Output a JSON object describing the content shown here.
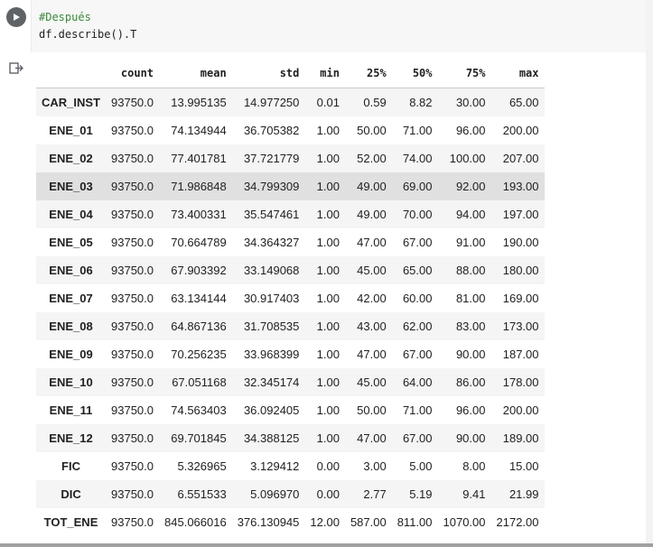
{
  "code_cell": {
    "lines": [
      "#Después",
      "df.describe().T"
    ]
  },
  "icons": {
    "run": "play-icon",
    "output": "output-arrow-icon"
  },
  "table": {
    "columns": [
      "count",
      "mean",
      "std",
      "min",
      "25%",
      "50%",
      "75%",
      "max"
    ],
    "rows": [
      {
        "index": "CAR_INST",
        "values": [
          "93750.0",
          "13.995135",
          "14.977250",
          "0.01",
          "0.59",
          "8.82",
          "30.00",
          "65.00"
        ]
      },
      {
        "index": "ENE_01",
        "values": [
          "93750.0",
          "74.134944",
          "36.705382",
          "1.00",
          "50.00",
          "71.00",
          "96.00",
          "200.00"
        ]
      },
      {
        "index": "ENE_02",
        "values": [
          "93750.0",
          "77.401781",
          "37.721779",
          "1.00",
          "52.00",
          "74.00",
          "100.00",
          "207.00"
        ]
      },
      {
        "index": "ENE_03",
        "values": [
          "93750.0",
          "71.986848",
          "34.799309",
          "1.00",
          "49.00",
          "69.00",
          "92.00",
          "193.00"
        ]
      },
      {
        "index": "ENE_04",
        "values": [
          "93750.0",
          "73.400331",
          "35.547461",
          "1.00",
          "49.00",
          "70.00",
          "94.00",
          "197.00"
        ]
      },
      {
        "index": "ENE_05",
        "values": [
          "93750.0",
          "70.664789",
          "34.364327",
          "1.00",
          "47.00",
          "67.00",
          "91.00",
          "190.00"
        ]
      },
      {
        "index": "ENE_06",
        "values": [
          "93750.0",
          "67.903392",
          "33.149068",
          "1.00",
          "45.00",
          "65.00",
          "88.00",
          "180.00"
        ]
      },
      {
        "index": "ENE_07",
        "values": [
          "93750.0",
          "63.134144",
          "30.917403",
          "1.00",
          "42.00",
          "60.00",
          "81.00",
          "169.00"
        ]
      },
      {
        "index": "ENE_08",
        "values": [
          "93750.0",
          "64.867136",
          "31.708535",
          "1.00",
          "43.00",
          "62.00",
          "83.00",
          "173.00"
        ]
      },
      {
        "index": "ENE_09",
        "values": [
          "93750.0",
          "70.256235",
          "33.968399",
          "1.00",
          "47.00",
          "67.00",
          "90.00",
          "187.00"
        ]
      },
      {
        "index": "ENE_10",
        "values": [
          "93750.0",
          "67.051168",
          "32.345174",
          "1.00",
          "45.00",
          "64.00",
          "86.00",
          "178.00"
        ]
      },
      {
        "index": "ENE_11",
        "values": [
          "93750.0",
          "74.563403",
          "36.092405",
          "1.00",
          "50.00",
          "71.00",
          "96.00",
          "200.00"
        ]
      },
      {
        "index": "ENE_12",
        "values": [
          "93750.0",
          "69.701845",
          "34.388125",
          "1.00",
          "47.00",
          "67.00",
          "90.00",
          "189.00"
        ]
      },
      {
        "index": "FIC",
        "values": [
          "93750.0",
          "5.326965",
          "3.129412",
          "0.00",
          "3.00",
          "5.00",
          "8.00",
          "15.00"
        ]
      },
      {
        "index": "DIC",
        "values": [
          "93750.0",
          "6.551533",
          "5.096970",
          "0.00",
          "2.77",
          "5.19",
          "9.41",
          "21.99"
        ]
      },
      {
        "index": "TOT_ENE",
        "values": [
          "93750.0",
          "845.066016",
          "376.130945",
          "12.00",
          "587.00",
          "811.00",
          "1070.00",
          "2172.00"
        ]
      }
    ],
    "hovered_row": "ENE_03"
  },
  "colors": {
    "editor_bg": "#f7f7f7",
    "comment": "#3a8a3a",
    "row_odd": "#f5f5f5",
    "row_hover": "#e0e0e0"
  }
}
